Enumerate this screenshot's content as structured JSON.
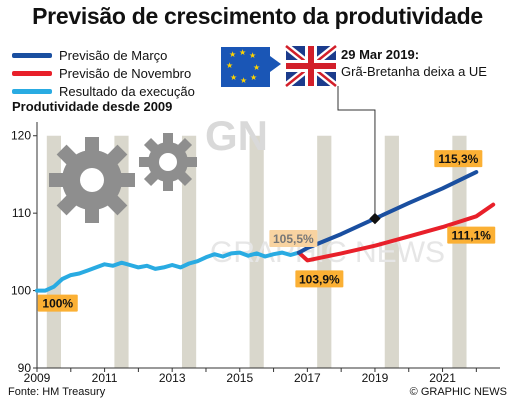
{
  "title": "Previsão de crescimento da produtividade",
  "annotation": {
    "date": "29 Mar 2019:",
    "text": "Grã-Bretanha deixa a UE"
  },
  "source": "Fonte: HM Treasury",
  "credit": "© GRAPHIC NEWS",
  "watermark": "GRAPHIC NEWS",
  "chart_data": {
    "type": "line",
    "title": "Previsão de crescimento da produtividade",
    "ylabel": "Produtividade desde 2009",
    "ylim": [
      90,
      121
    ],
    "xlim": [
      2009,
      2022.7
    ],
    "yticks": [
      90,
      100,
      110,
      120
    ],
    "xticks": [
      2009,
      2011,
      2013,
      2015,
      2017,
      2019,
      2021
    ],
    "grid": false,
    "legend_position": "top-left",
    "background_bars": {
      "x": [
        2009.5,
        2010.5,
        2011.5,
        2012.5,
        2013.5,
        2014.5,
        2015.5,
        2016.5,
        2017.5,
        2018.5,
        2019.5,
        2020.5,
        2021.5
      ],
      "top": 120
    },
    "series": [
      {
        "name": "Resultado da execução",
        "color": "#29abe2",
        "x": [
          2009.0,
          2009.25,
          2009.5,
          2009.75,
          2010.0,
          2010.25,
          2010.5,
          2010.75,
          2011.0,
          2011.25,
          2011.5,
          2011.75,
          2012.0,
          2012.25,
          2012.5,
          2012.75,
          2013.0,
          2013.25,
          2013.5,
          2013.75,
          2014.0,
          2014.25,
          2014.5,
          2014.75,
          2015.0,
          2015.25,
          2015.5,
          2015.75,
          2016.0,
          2016.25,
          2016.5,
          2016.75
        ],
        "y": [
          100.0,
          100.0,
          100.5,
          101.5,
          102.0,
          102.2,
          102.6,
          103.0,
          103.4,
          103.2,
          103.6,
          103.3,
          103.0,
          103.2,
          102.8,
          103.0,
          103.3,
          103.0,
          103.5,
          103.8,
          104.3,
          104.7,
          104.4,
          104.8,
          104.9,
          104.5,
          104.8,
          104.4,
          104.7,
          104.9,
          104.6,
          104.9
        ]
      },
      {
        "name": "Previsão de Novembro",
        "color": "#e8202a",
        "x": [
          2016.75,
          2017.0,
          2018.0,
          2019.0,
          2020.0,
          2021.0,
          2022.0,
          2022.5
        ],
        "y": [
          104.9,
          103.9,
          104.8,
          105.8,
          107.0,
          108.2,
          109.6,
          111.1
        ]
      },
      {
        "name": "Previsão de Março",
        "color": "#1a4fa0",
        "x": [
          2016.75,
          2017.0,
          2018.0,
          2019.0,
          2020.0,
          2021.0,
          2022.0
        ],
        "y": [
          104.9,
          105.5,
          107.3,
          109.3,
          111.3,
          113.2,
          115.3
        ]
      }
    ],
    "data_labels": [
      {
        "text": "100%",
        "x": 2009.2,
        "y": 100.0
      },
      {
        "text": "105,5%",
        "x": 2017.0,
        "y": 105.5
      },
      {
        "text": "103,9%",
        "x": 2017.0,
        "y": 103.9
      },
      {
        "text": "115,3%",
        "x": 2022.0,
        "y": 115.3
      },
      {
        "text": "111,1%",
        "x": 2022.5,
        "y": 111.1
      }
    ],
    "event_marker": {
      "x": 2019.0,
      "y": 109.3
    }
  }
}
